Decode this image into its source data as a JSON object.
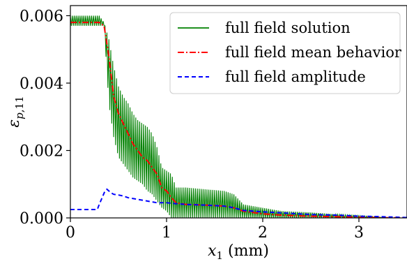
{
  "chart_data": {
    "type": "line",
    "xlabel": "x₁ (mm)",
    "ylabel": "εp,11",
    "xlim": [
      0,
      3.5
    ],
    "ylim": [
      0,
      0.0063
    ],
    "xticks": [
      0,
      1,
      2,
      3
    ],
    "xtick_labels": [
      "0",
      "1",
      "2",
      "3"
    ],
    "yticks": [
      0,
      0.002,
      0.004,
      0.006
    ],
    "ytick_labels": [
      "0.000",
      "0.002",
      "0.004",
      "0.006"
    ],
    "grid": false,
    "legend_position": "top-right",
    "series": [
      {
        "name": "full field solution",
        "color": "#008000",
        "style": "solid",
        "oscillation_period_mm": 0.02,
        "envelope_x": [
          0,
          0.05,
          0.1,
          0.2,
          0.3,
          0.35,
          0.4,
          0.45,
          0.5,
          0.55,
          0.6,
          0.65,
          0.7,
          0.75,
          0.8,
          0.85,
          0.9,
          0.95,
          1.0,
          1.05,
          1.1,
          1.2,
          1.4,
          1.6,
          1.7,
          1.8,
          2.0,
          2.2,
          2.5,
          2.8,
          3.0,
          3.2,
          3.3,
          3.5
        ],
        "upper": [
          0.006,
          0.006,
          0.006,
          0.006,
          0.006,
          0.0058,
          0.0053,
          0.0045,
          0.0039,
          0.0036,
          0.0034,
          0.0031,
          0.0029,
          0.0028,
          0.0027,
          0.0025,
          0.0021,
          0.0015,
          0.0014,
          0.0013,
          0.0009,
          0.0009,
          0.00085,
          0.0008,
          0.0007,
          0.0004,
          0.0003,
          0.0002,
          0.00016,
          0.0001,
          7e-05,
          3e-05,
          0.0,
          0.0
        ],
        "lower": [
          0.0057,
          0.0057,
          0.0057,
          0.0057,
          0.0057,
          0.0057,
          0.0034,
          0.0024,
          0.0018,
          0.0016,
          0.0014,
          0.0012,
          0.0011,
          0.001,
          0.0008,
          0.0007,
          0.0005,
          0.0003,
          0.0002,
          0.0,
          0.0,
          0.0,
          0.0,
          0.0,
          0.0,
          0.0,
          0.0,
          0.0,
          0.0,
          0.0,
          0.0,
          0.0,
          0.0,
          0.0
        ]
      },
      {
        "name": "full field mean behavior",
        "color": "#ff0000",
        "style": "dashdot",
        "x": [
          0,
          0.3,
          0.35,
          0.4,
          0.45,
          0.5,
          0.55,
          0.6,
          0.65,
          0.7,
          0.75,
          0.8,
          0.85,
          0.9,
          0.95,
          1.0,
          1.05,
          1.1,
          1.2,
          1.4,
          1.6,
          1.7,
          1.8,
          2.0,
          2.2,
          2.5,
          3.0,
          3.2,
          3.5
        ],
        "y": [
          0.0058,
          0.0058,
          0.0057,
          0.0048,
          0.0036,
          0.0031,
          0.0028,
          0.0025,
          0.0022,
          0.002,
          0.0018,
          0.0017,
          0.0015,
          0.0013,
          0.0009,
          0.0008,
          0.0006,
          0.00045,
          0.0004,
          0.00038,
          0.00035,
          0.0003,
          0.0002,
          0.00012,
          8e-05,
          5e-05,
          2e-05,
          1e-05,
          0.0
        ]
      },
      {
        "name": "full field amplitude",
        "color": "#0000ff",
        "style": "dashed",
        "x": [
          0,
          0.28,
          0.3,
          0.33,
          0.36,
          0.38,
          0.42,
          0.45,
          0.5,
          0.55,
          0.6,
          0.7,
          0.8,
          0.9,
          1.0,
          1.1,
          1.2,
          1.4,
          1.6,
          1.7,
          1.8,
          2.0,
          2.2,
          2.5,
          2.8,
          3.0,
          3.2,
          3.4,
          3.5
        ],
        "y": [
          0.00025,
          0.00025,
          0.0004,
          0.0006,
          0.0008,
          0.00085,
          0.00075,
          0.0007,
          0.00068,
          0.00065,
          0.0006,
          0.00055,
          0.0005,
          0.00045,
          0.00045,
          0.00042,
          0.0004,
          0.00038,
          0.00035,
          0.0003,
          0.00022,
          0.00018,
          0.00015,
          0.0001,
          8e-05,
          5e-05,
          4e-05,
          2e-05,
          1e-05
        ]
      }
    ]
  }
}
